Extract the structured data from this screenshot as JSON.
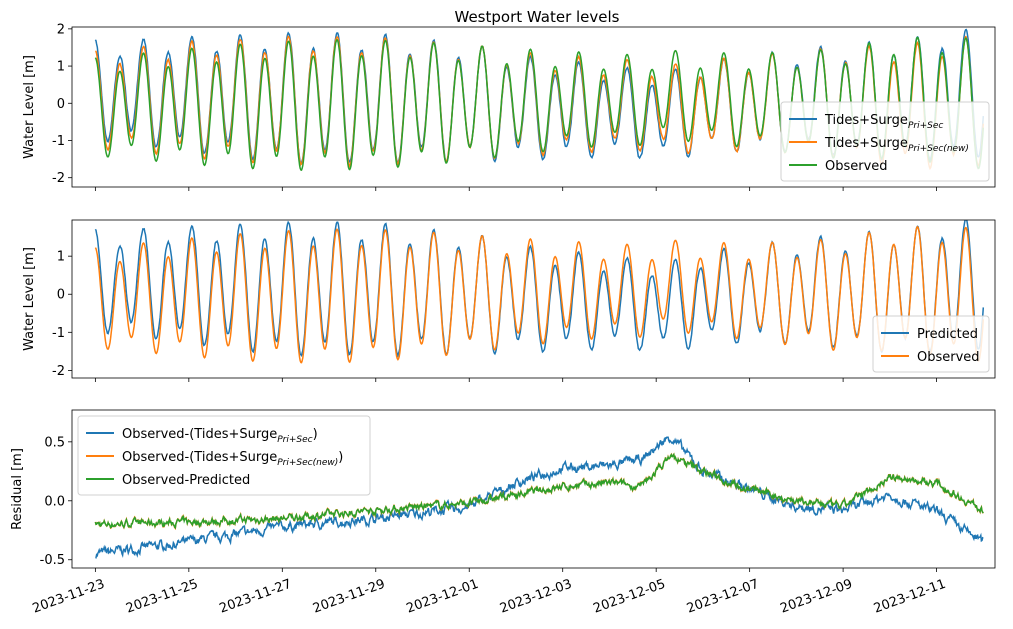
{
  "title": "Westport Water levels",
  "colors": {
    "blue": "#1f77b4",
    "orange": "#ff7f0e",
    "green": "#2ca02c"
  },
  "x_tick_labels": [
    "2023-11-23",
    "2023-11-25",
    "2023-11-27",
    "2023-11-29",
    "2023-12-01",
    "2023-12-03",
    "2023-12-05",
    "2023-12-07",
    "2023-12-09",
    "2023-12-11"
  ],
  "chart_data": [
    {
      "type": "line",
      "title": "Westport Water levels",
      "ylabel": "Water Level [m]",
      "ylim": [
        -2.25,
        2.05
      ],
      "yticks": [
        -2,
        -1,
        0,
        1,
        2
      ],
      "xlim": [
        "2023-11-22T12:00",
        "2023-12-12T06:00"
      ],
      "x_ticks": [
        "2023-11-23",
        "2023-11-25",
        "2023-11-27",
        "2023-11-29",
        "2023-12-01",
        "2023-12-03",
        "2023-12-05",
        "2023-12-07",
        "2023-12-09",
        "2023-12-11"
      ],
      "legend": "lower-right",
      "series": [
        {
          "name": "Tides+Surge",
          "name_sub": "Pri+Sec",
          "color": "#1f77b4"
        },
        {
          "name": "Tides+Surge",
          "name_sub": "Pri+Sec(new)",
          "color": "#ff7f0e"
        },
        {
          "name": "Observed",
          "color": "#2ca02c"
        }
      ]
    },
    {
      "type": "line",
      "ylabel": "Water Level [m]",
      "ylim": [
        -2.2,
        1.95
      ],
      "yticks": [
        -2,
        -1,
        0,
        1
      ],
      "xlim": [
        "2023-11-22T12:00",
        "2023-12-12T06:00"
      ],
      "legend": "lower-right",
      "series": [
        {
          "name": "Predicted",
          "color": "#1f77b4"
        },
        {
          "name": "Observed",
          "color": "#ff7f0e"
        }
      ]
    },
    {
      "type": "line",
      "ylabel": "Residual [m]",
      "ylim": [
        -0.57,
        0.77
      ],
      "yticks": [
        -0.5,
        0.0,
        0.5
      ],
      "xlim": [
        "2023-11-22T12:00",
        "2023-12-12T06:00"
      ],
      "legend": "upper-left",
      "residual_trend_days": [
        0,
        2,
        4,
        6,
        8,
        9,
        10,
        11,
        11.7,
        12.3,
        13,
        14,
        15,
        16,
        17,
        18,
        19
      ],
      "series": [
        {
          "name": "Observed-(Tides+Surge",
          "name_sub": "Pri+Sec",
          "name_suffix": ")",
          "color": "#1f77b4",
          "trend": [
            -0.45,
            -0.35,
            -0.22,
            -0.15,
            -0.05,
            0.15,
            0.28,
            0.3,
            0.35,
            0.55,
            0.25,
            0.1,
            -0.05,
            -0.08,
            0.05,
            -0.1,
            -0.35
          ]
        },
        {
          "name": "Observed-(Tides+Surge",
          "name_sub": "Pri+Sec(new)",
          "name_suffix": ")",
          "color": "#ff7f0e",
          "trend": [
            -0.2,
            -0.18,
            -0.15,
            -0.08,
            -0.02,
            0.05,
            0.12,
            0.15,
            0.12,
            0.38,
            0.25,
            0.1,
            0.0,
            -0.05,
            0.2,
            0.15,
            -0.08
          ]
        },
        {
          "name": "Observed-Predicted",
          "color": "#2ca02c",
          "trend": [
            -0.2,
            -0.18,
            -0.15,
            -0.08,
            -0.02,
            0.05,
            0.12,
            0.15,
            0.12,
            0.38,
            0.25,
            0.1,
            0.0,
            -0.05,
            0.2,
            0.15,
            -0.08
          ]
        }
      ]
    }
  ]
}
